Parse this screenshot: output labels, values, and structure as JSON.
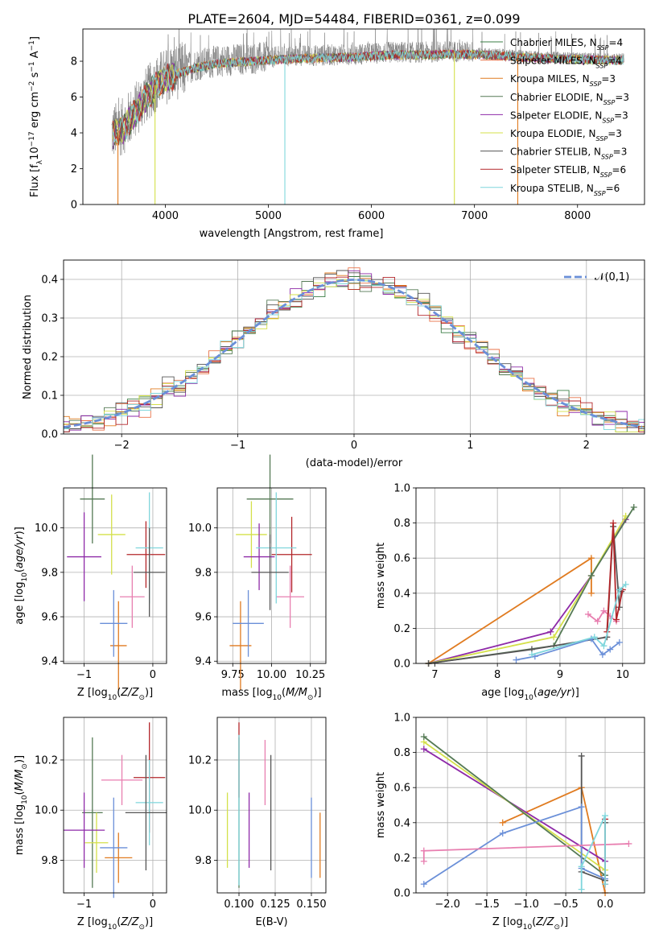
{
  "figure_title": "PLATE=2604, MJD=54484, FIBERID=0361, z=0.099",
  "series_styles": [
    {
      "label": "Chabrier MILES, N",
      "sub": "SSP",
      "suffix": "=4",
      "color": "#3a7d44"
    },
    {
      "label": "Salpeter MILES, N",
      "sub": "SSP",
      "suffix": "=4",
      "color": "#e8734a"
    },
    {
      "label": "Kroupa MILES, N",
      "sub": "SSP",
      "suffix": "=3",
      "color": "#e07b20"
    },
    {
      "label": "Chabrier ELODIE, N",
      "sub": "SSP",
      "suffix": "=3",
      "color": "#557a55"
    },
    {
      "label": "Salpeter ELODIE, N",
      "sub": "SSP",
      "suffix": "=3",
      "color": "#8e2aa8"
    },
    {
      "label": "Kroupa ELODIE, N",
      "sub": "SSP",
      "suffix": "=3",
      "color": "#d4e04a"
    },
    {
      "label": "Chabrier STELIB, N",
      "sub": "SSP",
      "suffix": "=3",
      "color": "#555555"
    },
    {
      "label": "Salpeter STELIB, N",
      "sub": "SSP",
      "suffix": "=6",
      "color": "#b3262a"
    },
    {
      "label": "Kroupa STELIB, N",
      "sub": "SSP",
      "suffix": "=6",
      "color": "#7fd6dc"
    }
  ],
  "chart_data": [
    {
      "id": "spectrum",
      "type": "line",
      "xlabel": "wavelength [Angstrom, rest frame]",
      "ylabel": "Flux [f_λ 10^-17 erg cm^-2 s^-1 A^-1]",
      "xlim": [
        3200,
        8650
      ],
      "ylim": [
        0,
        9.8
      ],
      "xticks": [
        4000,
        5000,
        6000,
        7000,
        8000
      ],
      "yticks": [
        0,
        2,
        4,
        6,
        8
      ],
      "legend_position": "upper-right",
      "data_color": "#808080",
      "continuum_anchors": {
        "x": [
          3480,
          3600,
          3800,
          3950,
          4100,
          4300,
          4500,
          4700,
          5000,
          5300,
          5600,
          5900,
          6200,
          6500,
          6800,
          7100,
          7400,
          7700,
          8000,
          8300,
          8450
        ],
        "y": [
          4.0,
          4.4,
          6.0,
          7.0,
          7.4,
          7.8,
          8.0,
          8.1,
          8.2,
          8.3,
          8.35,
          8.4,
          8.5,
          8.5,
          8.55,
          8.5,
          8.4,
          8.3,
          8.25,
          8.2,
          8.2
        ]
      },
      "dropouts": [
        {
          "x": 3540,
          "color": "#e07b20"
        },
        {
          "x": 3900,
          "color": "#d4e04a"
        },
        {
          "x": 5160,
          "color": "#7fd6dc"
        },
        {
          "x": 6805,
          "color": "#d4e04a"
        },
        {
          "x": 7420,
          "color": "#e07b20"
        }
      ]
    },
    {
      "id": "residuals",
      "type": "histogram",
      "xlabel": "(data-model)/error",
      "ylabel": "Normed distribution",
      "xlim": [
        -2.5,
        2.5
      ],
      "ylim": [
        0,
        0.45
      ],
      "xticks": [
        -2,
        -1,
        0,
        1,
        2
      ],
      "yticks": [
        0.0,
        0.1,
        0.2,
        0.3,
        0.4
      ],
      "legend": "𝒩(0,1)",
      "legend_position": "upper-right",
      "curve_color": "#6a8fd8",
      "bin_width": 0.1
    },
    {
      "id": "age_vs_Z",
      "type": "errorbar",
      "xlabel": "Z [log10(Z/Z⊙)]",
      "ylabel": "age [log10(age/yr)]",
      "xlim": [
        -1.3,
        0.2
      ],
      "ylim": [
        9.39,
        10.18
      ],
      "xticks": [
        -1,
        0
      ],
      "yticks": [
        9.4,
        9.6,
        9.8,
        10.0
      ],
      "points": [
        {
          "x": -0.88,
          "y": 10.13,
          "xerr": 0.18,
          "yerr": 0.2,
          "color": "#557a55"
        },
        {
          "x": -0.6,
          "y": 9.97,
          "xerr": 0.2,
          "yerr": 0.18,
          "color": "#d4e04a"
        },
        {
          "x": -1.0,
          "y": 9.87,
          "xerr": 0.25,
          "yerr": 0.2,
          "color": "#8e2aa8"
        },
        {
          "x": -0.5,
          "y": 9.47,
          "xerr": 0.12,
          "yerr": 0.2,
          "color": "#e07b20"
        },
        {
          "x": -0.57,
          "y": 9.57,
          "xerr": 0.2,
          "yerr": 0.15,
          "color": "#6a8fd8"
        },
        {
          "x": -0.3,
          "y": 9.69,
          "xerr": 0.18,
          "yerr": 0.14,
          "color": "#e87fb0"
        },
        {
          "x": -0.1,
          "y": 9.88,
          "xerr": 0.28,
          "yerr": 0.15,
          "color": "#b3262a"
        },
        {
          "x": -0.05,
          "y": 9.91,
          "xerr": 0.2,
          "yerr": 0.25,
          "color": "#7fd6dc"
        },
        {
          "x": -0.05,
          "y": 9.8,
          "xerr": 0.23,
          "yerr": 0.2,
          "color": "#555555"
        }
      ]
    },
    {
      "id": "age_vs_mass",
      "type": "errorbar",
      "xlabel": "mass [log10(M/M⊙)]",
      "ylabel": "",
      "xlim": [
        9.65,
        10.35
      ],
      "ylim": [
        9.39,
        10.18
      ],
      "xticks": [
        9.75,
        10.0,
        10.25
      ],
      "yticks": [
        9.4,
        9.6,
        9.8,
        10.0
      ],
      "points": [
        {
          "x": 9.99,
          "y": 10.13,
          "xerr": 0.15,
          "yerr": 0.2,
          "color": "#557a55"
        },
        {
          "x": 9.87,
          "y": 9.97,
          "xerr": 0.1,
          "yerr": 0.15,
          "color": "#d4e04a"
        },
        {
          "x": 9.92,
          "y": 9.87,
          "xerr": 0.1,
          "yerr": 0.15,
          "color": "#8e2aa8"
        },
        {
          "x": 9.8,
          "y": 9.47,
          "xerr": 0.07,
          "yerr": 0.2,
          "color": "#e07b20"
        },
        {
          "x": 9.85,
          "y": 9.57,
          "xerr": 0.1,
          "yerr": 0.15,
          "color": "#6a8fd8"
        },
        {
          "x": 10.12,
          "y": 9.69,
          "xerr": 0.09,
          "yerr": 0.14,
          "color": "#e87fb0"
        },
        {
          "x": 10.13,
          "y": 9.88,
          "xerr": 0.13,
          "yerr": 0.17,
          "color": "#b3262a"
        },
        {
          "x": 10.03,
          "y": 9.91,
          "xerr": 0.13,
          "yerr": 0.25,
          "color": "#7fd6dc"
        },
        {
          "x": 9.99,
          "y": 9.8,
          "xerr": 0.12,
          "yerr": 0.17,
          "color": "#555555"
        }
      ]
    },
    {
      "id": "mass_weight_vs_age",
      "type": "line",
      "xlabel": "age [log10(age/yr)]",
      "ylabel": "mass weight",
      "xlim": [
        6.7,
        10.35
      ],
      "ylim": [
        0,
        1.0
      ],
      "xticks": [
        7,
        8,
        9,
        10
      ],
      "yticks": [
        0.0,
        0.2,
        0.4,
        0.6,
        0.8,
        1.0
      ],
      "series": [
        {
          "color": "#e07b20",
          "x": [
            6.9,
            9.5,
            9.5
          ],
          "y": [
            0.0,
            0.6,
            0.4
          ]
        },
        {
          "color": "#8e2aa8",
          "x": [
            6.9,
            8.85,
            9.5,
            10.05
          ],
          "y": [
            0.0,
            0.18,
            0.5,
            0.82
          ]
        },
        {
          "color": "#d4e04a",
          "x": [
            6.9,
            8.9,
            9.5,
            10.05
          ],
          "y": [
            0.0,
            0.15,
            0.5,
            0.84
          ]
        },
        {
          "color": "#557a55",
          "x": [
            6.9,
            8.9,
            9.5,
            10.18
          ],
          "y": [
            0.0,
            0.1,
            0.5,
            0.89
          ]
        },
        {
          "color": "#555555",
          "x": [
            6.9,
            8.55,
            9.75,
            9.85,
            9.95,
            9.98
          ],
          "y": [
            0.0,
            0.08,
            0.15,
            0.78,
            0.32,
            0.41
          ]
        },
        {
          "color": "#6a8fd8",
          "x": [
            8.3,
            8.6,
            9.5,
            9.68,
            9.8,
            9.95
          ],
          "y": [
            0.02,
            0.04,
            0.14,
            0.05,
            0.08,
            0.12
          ]
        },
        {
          "color": "#e87fb0",
          "x": [
            9.45,
            9.6,
            9.7,
            9.8,
            9.9
          ],
          "y": [
            0.28,
            0.24,
            0.3,
            0.27,
            0.24
          ]
        },
        {
          "color": "#b3262a",
          "x": [
            9.75,
            9.85,
            9.9,
            10.0
          ],
          "y": [
            0.18,
            0.8,
            0.25,
            0.42
          ]
        },
        {
          "color": "#7fd6dc",
          "x": [
            8.55,
            9.55,
            9.7,
            9.95,
            10.05
          ],
          "y": [
            0.05,
            0.15,
            0.1,
            0.42,
            0.45
          ]
        }
      ]
    },
    {
      "id": "mass_vs_Z",
      "type": "errorbar",
      "xlabel": "Z [log10(Z/Z⊙)]",
      "ylabel": "mass [log10(M/M⊙)]",
      "xlim": [
        -1.3,
        0.2
      ],
      "ylim": [
        9.67,
        10.37
      ],
      "xticks": [
        -1,
        0
      ],
      "yticks": [
        9.8,
        10.0,
        10.2
      ],
      "points": [
        {
          "x": -0.88,
          "y": 9.99,
          "xerr": 0.15,
          "yerr": 0.3,
          "color": "#557a55"
        },
        {
          "x": -0.82,
          "y": 9.87,
          "xerr": 0.17,
          "yerr": 0.12,
          "color": "#d4e04a"
        },
        {
          "x": -1.0,
          "y": 9.92,
          "xerr": 0.3,
          "yerr": 0.15,
          "color": "#8e2aa8"
        },
        {
          "x": -0.5,
          "y": 9.81,
          "xerr": 0.2,
          "yerr": 0.1,
          "color": "#e07b20"
        },
        {
          "x": -0.57,
          "y": 9.85,
          "xerr": 0.2,
          "yerr": 0.2,
          "color": "#6a8fd8"
        },
        {
          "x": -0.45,
          "y": 10.12,
          "xerr": 0.3,
          "yerr": 0.1,
          "color": "#e87fb0"
        },
        {
          "x": -0.05,
          "y": 10.13,
          "xerr": 0.23,
          "yerr": 0.22,
          "color": "#b3262a"
        },
        {
          "x": -0.05,
          "y": 10.03,
          "xerr": 0.2,
          "yerr": 0.17,
          "color": "#7fd6dc"
        },
        {
          "x": -0.1,
          "y": 9.99,
          "xerr": 0.3,
          "yerr": 0.23,
          "color": "#555555"
        }
      ]
    },
    {
      "id": "mass_vs_EBV",
      "type": "errorbar",
      "xlabel": "E(B-V)",
      "ylabel": "",
      "xlim": [
        0.085,
        0.16
      ],
      "ylim": [
        9.67,
        10.37
      ],
      "xticks": [
        0.1,
        0.125,
        0.15
      ],
      "xticklabels": [
        "0.100",
        "0.125",
        "0.150"
      ],
      "yticks": [
        9.8,
        10.0,
        10.2
      ],
      "points": [
        {
          "x": 0.1,
          "y": 9.99,
          "xerr": 0,
          "yerr": 0.3,
          "color": "#557a55"
        },
        {
          "x": 0.092,
          "y": 9.92,
          "xerr": 0,
          "yerr": 0.15,
          "color": "#d4e04a"
        },
        {
          "x": 0.107,
          "y": 9.92,
          "xerr": 0,
          "yerr": 0.15,
          "color": "#8e2aa8"
        },
        {
          "x": 0.156,
          "y": 9.86,
          "xerr": 0,
          "yerr": 0.13,
          "color": "#e07b20"
        },
        {
          "x": 0.15,
          "y": 9.89,
          "xerr": 0,
          "yerr": 0.16,
          "color": "#6a8fd8"
        },
        {
          "x": 0.118,
          "y": 10.15,
          "xerr": 0,
          "yerr": 0.13,
          "color": "#e87fb0"
        },
        {
          "x": 0.1,
          "y": 10.2,
          "xerr": 0,
          "yerr": 0.15,
          "color": "#b3262a"
        },
        {
          "x": 0.1,
          "y": 10.0,
          "xerr": 0,
          "yerr": 0.3,
          "color": "#7fd6dc"
        },
        {
          "x": 0.122,
          "y": 9.99,
          "xerr": 0,
          "yerr": 0.23,
          "color": "#555555"
        }
      ]
    },
    {
      "id": "mass_weight_vs_Z",
      "type": "line",
      "xlabel": "Z [log10(Z/Z⊙)]",
      "ylabel": "mass weight",
      "xlim": [
        -2.4,
        0.5
      ],
      "ylim": [
        0,
        1.0
      ],
      "xticks": [
        -2.0,
        -1.5,
        -1.0,
        -0.5,
        0.0
      ],
      "xticklabels": [
        "−2.0",
        "−1.5",
        "−1.0",
        "−0.5",
        "0.0"
      ],
      "yticks": [
        0.0,
        0.2,
        0.4,
        0.6,
        0.8,
        1.0
      ],
      "series": [
        {
          "color": "#e07b20",
          "x": [
            -1.3,
            -0.3,
            0.0
          ],
          "y": [
            0.4,
            0.6,
            0.0
          ]
        },
        {
          "color": "#8e2aa8",
          "x": [
            -2.3,
            0.0
          ],
          "y": [
            0.82,
            0.18
          ]
        },
        {
          "color": "#d4e04a",
          "x": [
            -2.3,
            0.0
          ],
          "y": [
            0.86,
            0.13
          ]
        },
        {
          "color": "#557a55",
          "x": [
            -2.3,
            0.0
          ],
          "y": [
            0.89,
            0.1
          ]
        },
        {
          "color": "#555555",
          "x": [
            -0.3,
            -0.3,
            0.0,
            0.0
          ],
          "y": [
            0.78,
            0.12,
            0.07,
            0.4
          ]
        },
        {
          "color": "#6a8fd8",
          "x": [
            -2.3,
            -1.3,
            -0.3,
            -0.3,
            0.0
          ],
          "y": [
            0.05,
            0.34,
            0.49,
            0.14,
            0.08
          ]
        },
        {
          "color": "#e87fb0",
          "x": [
            -2.3,
            -2.3,
            0.3
          ],
          "y": [
            0.18,
            0.24,
            0.28
          ]
        },
        {
          "color": "#b3262a",
          "x": [
            0.0,
            0.0
          ],
          "y": [
            0.05,
            0.42
          ]
        },
        {
          "color": "#7fd6dc",
          "x": [
            -0.3,
            -0.3,
            0.0,
            0.0
          ],
          "y": [
            0.02,
            0.15,
            0.44,
            0.05
          ]
        }
      ]
    }
  ]
}
